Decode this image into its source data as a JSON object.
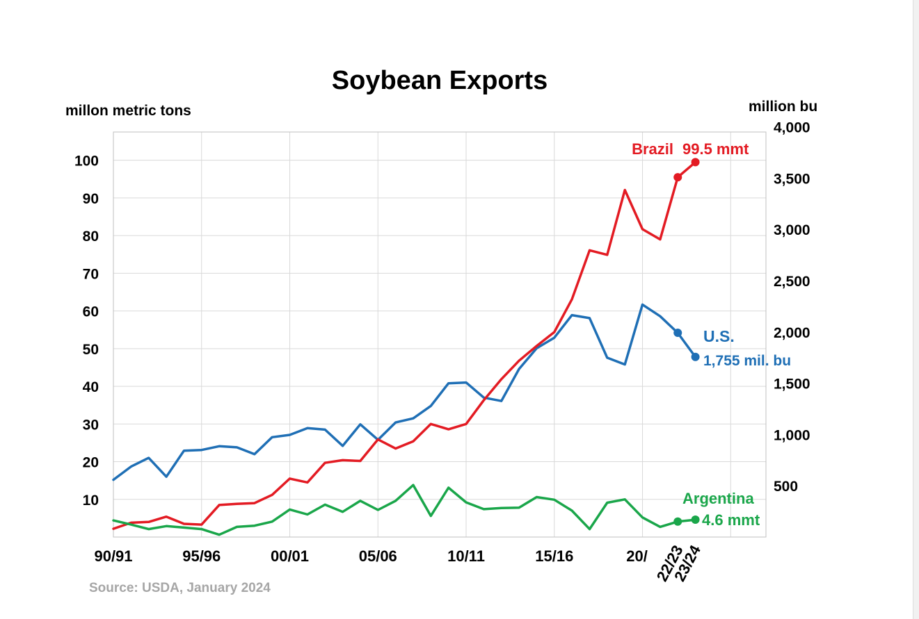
{
  "chart_data": {
    "type": "line",
    "title": "Soybean Exports",
    "ylabel_left": "millon metric tons",
    "ylabel_right": "million bu",
    "source": "Source: USDA, January 2024",
    "x_tick_labels": [
      "90/91",
      "95/96",
      "00/01",
      "05/06",
      "10/11",
      "15/16",
      "20/",
      "22/23",
      "23/24"
    ],
    "x_start_year": 1990,
    "x_end_year": 2027,
    "y_left_ticks": [
      10,
      20,
      30,
      40,
      50,
      60,
      70,
      80,
      90,
      100
    ],
    "y_left_range": [
      0,
      107.5
    ],
    "y_right_ticks": [
      "500",
      "1,000",
      "1,500",
      "2,000",
      "2,500",
      "3,000",
      "3,500",
      "4,000"
    ],
    "y_right_values": [
      500,
      1000,
      1500,
      2000,
      2500,
      3000,
      3500,
      4000
    ],
    "grid": true,
    "series": [
      {
        "name": "U.S.",
        "color": "#1f6fb5",
        "x": [
          1990,
          1991,
          1992,
          1993,
          1994,
          1995,
          1996,
          1997,
          1998,
          1999,
          2000,
          2001,
          2002,
          2003,
          2004,
          2005,
          2006,
          2007,
          2008,
          2009,
          2010,
          2011,
          2012,
          2013,
          2014,
          2015,
          2016,
          2017,
          2018,
          2019,
          2020,
          2021,
          2022,
          2023
        ],
        "values": [
          15.2,
          18.7,
          21.0,
          16.0,
          22.9,
          23.1,
          24.1,
          23.8,
          22.0,
          26.5,
          27.1,
          28.9,
          28.5,
          24.2,
          29.9,
          25.8,
          30.4,
          31.5,
          34.8,
          40.8,
          41.0,
          37.0,
          36.1,
          44.6,
          50.1,
          52.9,
          58.9,
          58.1,
          47.6,
          45.8,
          61.7,
          58.6,
          54.2,
          47.8
        ],
        "highlight_last": 2,
        "label": "U.S.",
        "annotation": "1,755 mil. bu"
      },
      {
        "name": "Brazil",
        "color": "#e31b23",
        "x": [
          1990,
          1991,
          1992,
          1993,
          1994,
          1995,
          1996,
          1997,
          1998,
          1999,
          2000,
          2001,
          2002,
          2003,
          2004,
          2005,
          2006,
          2007,
          2008,
          2009,
          2010,
          2011,
          2012,
          2013,
          2014,
          2015,
          2016,
          2017,
          2018,
          2019,
          2020,
          2021,
          2022,
          2023
        ],
        "values": [
          2.2,
          3.8,
          4.0,
          5.4,
          3.5,
          3.3,
          8.5,
          8.8,
          9.0,
          11.2,
          15.5,
          14.5,
          19.7,
          20.4,
          20.2,
          25.9,
          23.5,
          25.4,
          30.0,
          28.6,
          30.0,
          36.3,
          41.9,
          46.8,
          50.7,
          54.4,
          63.1,
          76.1,
          74.9,
          92.1,
          81.7,
          79.0,
          95.5,
          99.5
        ],
        "highlight_last": 2,
        "label": "Brazil",
        "annotation": "99.5 mmt"
      },
      {
        "name": "Argentina",
        "color": "#1aa64a",
        "x": [
          1990,
          1991,
          1992,
          1993,
          1994,
          1995,
          1996,
          1997,
          1998,
          1999,
          2000,
          2001,
          2002,
          2003,
          2004,
          2005,
          2006,
          2007,
          2008,
          2009,
          2010,
          2011,
          2012,
          2013,
          2014,
          2015,
          2016,
          2017,
          2018,
          2019,
          2020,
          2021,
          2022,
          2023
        ],
        "values": [
          4.4,
          3.3,
          2.1,
          2.9,
          2.5,
          2.1,
          0.6,
          2.7,
          3.0,
          4.1,
          7.3,
          6.0,
          8.6,
          6.7,
          9.6,
          7.2,
          9.6,
          13.8,
          5.6,
          13.1,
          9.2,
          7.4,
          7.7,
          7.8,
          10.6,
          9.9,
          7.0,
          2.1,
          9.1,
          10.0,
          5.2,
          2.7,
          4.1,
          4.6
        ],
        "highlight_last": 2,
        "label": "Argentina",
        "annotation": "4.6 mmt"
      }
    ]
  }
}
